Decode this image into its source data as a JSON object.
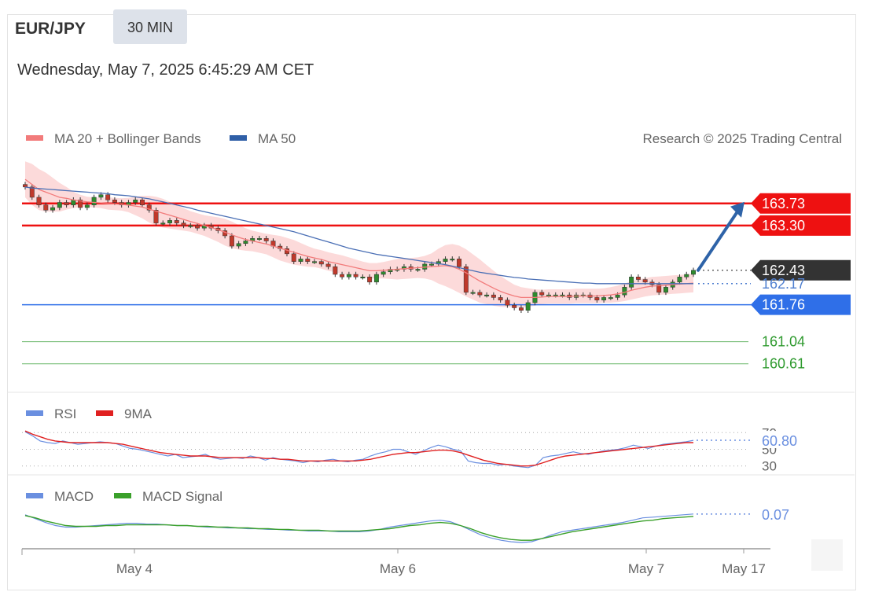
{
  "header": {
    "symbol": "EUR/JPY",
    "timeframe": "30 MIN",
    "timestamp": "Wednesday, May 7, 2025 6:45:29 AM CET",
    "credit": "Research © 2025 Trading Central"
  },
  "legends": {
    "main": [
      {
        "label": "MA 20 + Bollinger Bands",
        "color": "#f27b7b"
      },
      {
        "label": "MA 50",
        "color": "#2f5fa7"
      }
    ],
    "rsi": [
      {
        "label": "RSI",
        "color": "#6a8fe0"
      },
      {
        "label": "9MA",
        "color": "#e02020"
      }
    ],
    "macd": [
      {
        "label": "MACD",
        "color": "#6a8fe0"
      },
      {
        "label": "MACD Signal",
        "color": "#3aa02a"
      }
    ]
  },
  "colors": {
    "resistance": "#ee1111",
    "support": "#2f6fe8",
    "target": "#2e9a2e",
    "last_price": "#333333",
    "arrow": "#2e63a8",
    "bollinger_fill": "#fbd3d3",
    "candle_up": "#2e8b2e",
    "candle_down": "#c0392b"
  },
  "chart_data": [
    {
      "type": "candlestick",
      "panel": "price",
      "ylim": [
        160.3,
        164.4
      ],
      "x_ticks": [
        "May 4",
        "May 6",
        "May 7",
        "May 17"
      ],
      "levels": [
        {
          "value": 163.73,
          "label": "163.73",
          "kind": "resistance"
        },
        {
          "value": 163.3,
          "label": "163.30",
          "kind": "resistance"
        },
        {
          "value": 162.43,
          "label": "162.43",
          "kind": "last-price"
        },
        {
          "value": 162.17,
          "label": "162.17",
          "kind": "ma50"
        },
        {
          "value": 161.76,
          "label": "161.76",
          "kind": "support"
        },
        {
          "value": 161.04,
          "label": "161.04",
          "kind": "target"
        },
        {
          "value": 160.61,
          "label": "160.61",
          "kind": "target"
        }
      ],
      "close": [
        164.05,
        163.85,
        163.7,
        163.6,
        163.65,
        163.75,
        163.7,
        163.8,
        163.65,
        163.7,
        163.85,
        163.9,
        163.8,
        163.75,
        163.7,
        163.75,
        163.8,
        163.7,
        163.6,
        163.35,
        163.35,
        163.4,
        163.35,
        163.3,
        163.3,
        163.25,
        163.3,
        163.25,
        163.2,
        163.1,
        162.9,
        162.95,
        163.0,
        163.05,
        163.05,
        163.0,
        162.9,
        162.85,
        162.75,
        162.6,
        162.65,
        162.6,
        162.6,
        162.55,
        162.5,
        162.35,
        162.3,
        162.35,
        162.3,
        162.3,
        162.2,
        162.35,
        162.4,
        162.45,
        162.45,
        162.5,
        162.45,
        162.45,
        162.55,
        162.55,
        162.6,
        162.65,
        162.65,
        162.5,
        162.0,
        162.0,
        161.95,
        161.95,
        161.9,
        161.85,
        161.75,
        161.7,
        161.65,
        161.8,
        162.0,
        161.95,
        161.95,
        161.95,
        161.95,
        161.9,
        161.95,
        161.95,
        161.9,
        161.85,
        161.9,
        161.9,
        161.95,
        162.1,
        162.3,
        162.25,
        162.2,
        162.15,
        162.0,
        162.1,
        162.2,
        162.3,
        162.35,
        162.43
      ],
      "ma20": [
        164.2,
        164.1,
        164.0,
        163.95,
        163.9,
        163.85,
        163.83,
        163.8,
        163.78,
        163.76,
        163.75,
        163.74,
        163.73,
        163.72,
        163.71,
        163.7,
        163.68,
        163.66,
        163.62,
        163.58,
        163.54,
        163.5,
        163.46,
        163.42,
        163.38,
        163.34,
        163.3,
        163.26,
        163.22,
        163.17,
        163.12,
        163.07,
        163.03,
        163.0,
        162.97,
        162.94,
        162.9,
        162.86,
        162.82,
        162.78,
        162.74,
        162.7,
        162.67,
        162.64,
        162.6,
        162.57,
        162.54,
        162.51,
        162.48,
        162.45,
        162.42,
        162.42,
        162.43,
        162.44,
        162.45,
        162.46,
        162.47,
        162.48,
        162.49,
        162.5,
        162.51,
        162.52,
        162.5,
        162.45,
        162.38,
        162.3,
        162.22,
        162.15,
        162.08,
        162.02,
        161.97,
        161.93,
        161.9,
        161.9,
        161.9,
        161.91,
        161.92,
        161.92,
        161.92,
        161.92,
        161.93,
        161.93,
        161.93,
        161.93,
        161.94,
        161.95,
        161.97,
        162.0,
        162.04,
        162.07,
        162.1,
        162.12,
        162.13,
        162.14,
        162.15,
        162.16,
        162.17,
        162.18
      ],
      "ma50": [
        164.05,
        164.03,
        164.02,
        164.01,
        164.0,
        163.99,
        163.98,
        163.97,
        163.96,
        163.95,
        163.94,
        163.93,
        163.92,
        163.9,
        163.89,
        163.88,
        163.86,
        163.84,
        163.82,
        163.79,
        163.76,
        163.73,
        163.7,
        163.67,
        163.64,
        163.6,
        163.57,
        163.54,
        163.51,
        163.48,
        163.45,
        163.42,
        163.39,
        163.36,
        163.33,
        163.3,
        163.27,
        163.24,
        163.21,
        163.18,
        163.14,
        163.1,
        163.06,
        163.02,
        162.98,
        162.94,
        162.9,
        162.86,
        162.83,
        162.8,
        162.77,
        162.74,
        162.72,
        162.7,
        162.68,
        162.66,
        162.64,
        162.62,
        162.6,
        162.58,
        162.56,
        162.54,
        162.51,
        162.48,
        162.45,
        162.42,
        162.39,
        162.37,
        162.35,
        162.33,
        162.31,
        162.29,
        162.28,
        162.26,
        162.25,
        162.24,
        162.23,
        162.22,
        162.21,
        162.2,
        162.19,
        162.18,
        162.18,
        162.17,
        162.17,
        162.17,
        162.17,
        162.17,
        162.17,
        162.17,
        162.17,
        162.17,
        162.17,
        162.17,
        162.17,
        162.17,
        162.17,
        162.17
      ],
      "bb_width": [
        0.35,
        0.4,
        0.4,
        0.38,
        0.33,
        0.28,
        0.22,
        0.16,
        0.12,
        0.1,
        0.1,
        0.1,
        0.12,
        0.12,
        0.12,
        0.14,
        0.18,
        0.22,
        0.26,
        0.28,
        0.28,
        0.26,
        0.24,
        0.22,
        0.2,
        0.2,
        0.2,
        0.22,
        0.24,
        0.26,
        0.26,
        0.24,
        0.22,
        0.2,
        0.2,
        0.2,
        0.22,
        0.24,
        0.24,
        0.24,
        0.22,
        0.2,
        0.18,
        0.18,
        0.18,
        0.18,
        0.18,
        0.17,
        0.16,
        0.15,
        0.15,
        0.15,
        0.16,
        0.18,
        0.2,
        0.2,
        0.2,
        0.2,
        0.22,
        0.26,
        0.34,
        0.4,
        0.44,
        0.46,
        0.46,
        0.44,
        0.42,
        0.38,
        0.34,
        0.3,
        0.26,
        0.22,
        0.2,
        0.18,
        0.16,
        0.14,
        0.14,
        0.14,
        0.14,
        0.14,
        0.14,
        0.14,
        0.14,
        0.14,
        0.14,
        0.15,
        0.16,
        0.17,
        0.18,
        0.18,
        0.18,
        0.18,
        0.18,
        0.18,
        0.18,
        0.18,
        0.18,
        0.18
      ],
      "forecast_arrow": {
        "from": 162.43,
        "to": 163.73
      }
    },
    {
      "type": "line",
      "panel": "rsi",
      "ylim": [
        25,
        75
      ],
      "y_ticks": [
        70,
        50,
        30
      ],
      "last_value": "60.80",
      "series": [
        {
          "name": "RSI",
          "values": [
            71,
            66,
            60,
            58,
            57,
            60,
            58,
            56,
            57,
            58,
            59,
            58,
            57,
            54,
            51,
            50,
            48,
            46,
            44,
            42,
            44,
            40,
            41,
            42,
            44,
            40,
            38,
            39,
            40,
            39,
            42,
            40,
            37,
            40,
            38,
            37,
            36,
            34,
            36,
            35,
            37,
            38,
            36,
            35,
            37,
            38,
            42,
            45,
            47,
            50,
            50,
            47,
            44,
            48,
            52,
            55,
            53,
            50,
            48,
            36,
            34,
            33,
            33,
            31,
            32,
            30,
            29,
            28,
            31,
            40,
            42,
            43,
            45,
            47,
            45,
            44,
            46,
            48,
            49,
            50,
            52,
            55,
            53,
            51,
            54,
            56,
            57,
            58,
            59,
            60.8
          ]
        },
        {
          "name": "9MA",
          "values": [
            72,
            68,
            65,
            62,
            60,
            59,
            58,
            58,
            58,
            58,
            58,
            58,
            57,
            56,
            54,
            52,
            50,
            48,
            46,
            45,
            44,
            43,
            42,
            42,
            42,
            41,
            40,
            40,
            40,
            40,
            40,
            40,
            39,
            39,
            38,
            38,
            37,
            36,
            36,
            36,
            36,
            36,
            36,
            36,
            36,
            37,
            38,
            40,
            42,
            44,
            45,
            46,
            46,
            47,
            48,
            49,
            49,
            48,
            46,
            43,
            40,
            37,
            35,
            33,
            32,
            31,
            30,
            30,
            31,
            34,
            37,
            40,
            42,
            43,
            44,
            45,
            46,
            47,
            48,
            49,
            50,
            51,
            52,
            53,
            54,
            55,
            56,
            57,
            58,
            58
          ]
        }
      ]
    },
    {
      "type": "line",
      "panel": "macd",
      "ylim": [
        -0.35,
        0.15
      ],
      "last_value": "0.07",
      "series": [
        {
          "name": "MACD",
          "values": [
            0.06,
            0.01,
            -0.04,
            -0.08,
            -0.1,
            -0.1,
            -0.09,
            -0.08,
            -0.07,
            -0.06,
            -0.05,
            -0.05,
            -0.06,
            -0.06,
            -0.07,
            -0.08,
            -0.08,
            -0.09,
            -0.1,
            -0.1,
            -0.11,
            -0.11,
            -0.12,
            -0.12,
            -0.13,
            -0.13,
            -0.14,
            -0.14,
            -0.15,
            -0.15,
            -0.15,
            -0.16,
            -0.16,
            -0.16,
            -0.15,
            -0.13,
            -0.1,
            -0.08,
            -0.06,
            -0.04,
            -0.02,
            -0.01,
            -0.03,
            -0.08,
            -0.14,
            -0.2,
            -0.24,
            -0.27,
            -0.29,
            -0.3,
            -0.29,
            -0.25,
            -0.2,
            -0.16,
            -0.14,
            -0.12,
            -0.1,
            -0.08,
            -0.06,
            -0.04,
            -0.01,
            0.02,
            0.03,
            0.04,
            0.05,
            0.06,
            0.07
          ]
        },
        {
          "name": "MACD Signal",
          "values": [
            0.05,
            0.02,
            -0.02,
            -0.05,
            -0.08,
            -0.09,
            -0.09,
            -0.09,
            -0.08,
            -0.08,
            -0.07,
            -0.07,
            -0.07,
            -0.07,
            -0.07,
            -0.08,
            -0.08,
            -0.09,
            -0.09,
            -0.1,
            -0.1,
            -0.11,
            -0.11,
            -0.12,
            -0.12,
            -0.13,
            -0.13,
            -0.14,
            -0.14,
            -0.14,
            -0.15,
            -0.15,
            -0.15,
            -0.15,
            -0.14,
            -0.13,
            -0.12,
            -0.1,
            -0.08,
            -0.07,
            -0.05,
            -0.04,
            -0.05,
            -0.08,
            -0.12,
            -0.17,
            -0.21,
            -0.24,
            -0.26,
            -0.27,
            -0.27,
            -0.25,
            -0.22,
            -0.19,
            -0.16,
            -0.14,
            -0.12,
            -0.1,
            -0.08,
            -0.06,
            -0.04,
            -0.02,
            -0.01,
            0.01,
            0.02,
            0.03,
            0.04
          ]
        }
      ]
    }
  ]
}
